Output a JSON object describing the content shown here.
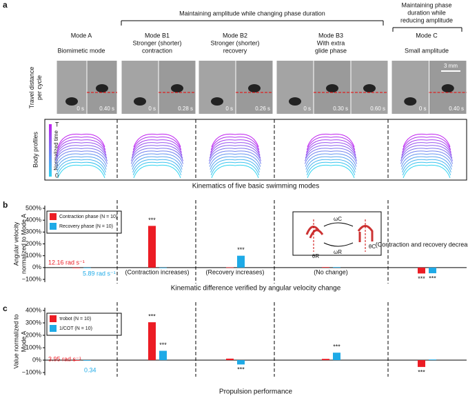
{
  "panel_a": {
    "label": "a",
    "header_left": "Maintaining amplitude while changing phase duration",
    "header_right": [
      "Maintaining phase",
      "duration while",
      "reducing amplitude"
    ],
    "row_labels": [
      [
        "Travel distance",
        "per cycle"
      ],
      [
        "Body profiles"
      ]
    ],
    "colorbar": {
      "top": "T",
      "middle": "Normalized time",
      "bottom": "0"
    },
    "scale_bar": "3 mm",
    "caption": "Kinematics of five basic swimming modes",
    "modes": [
      {
        "name": "Mode A",
        "description": [
          "Biomimetic mode"
        ],
        "times": [
          "0 s",
          "0.40 s"
        ]
      },
      {
        "name": "Mode B1",
        "description": [
          "Stronger (shorter)",
          "contraction"
        ],
        "times": [
          "0 s",
          "0.28 s"
        ]
      },
      {
        "name": "Mode B2",
        "description": [
          "Stronger (shorter)",
          "recovery"
        ],
        "times": [
          "0 s",
          "0.26 s"
        ]
      },
      {
        "name": "Mode B3",
        "description": [
          "With extra",
          "glide phase"
        ],
        "times": [
          "0 s",
          "0.30 s",
          "0.60 s"
        ]
      },
      {
        "name": "Mode C",
        "description": [
          "Small amplitude"
        ],
        "times": [
          "0 s",
          "0.40 s"
        ]
      }
    ]
  },
  "chart_data": [
    {
      "type": "bar",
      "label": "b",
      "y_label": [
        "Angular velocity",
        "normalized to Mode A"
      ],
      "caption": "Kinematic difference verified by angular velocity change",
      "categories": [
        null,
        null,
        null,
        null,
        null
      ],
      "ylim": [
        -100,
        500
      ],
      "yticks": [
        {
          "value": -100,
          "label": "−100%"
        },
        {
          "value": 0,
          "label": "0%"
        },
        {
          "value": 100,
          "label": "100%"
        },
        {
          "value": 200,
          "label": "200%"
        },
        {
          "value": 300,
          "label": "300%"
        },
        {
          "value": 400,
          "label": "400%"
        },
        {
          "value": 500,
          "label": "500%"
        }
      ],
      "series": [
        {
          "name": "Contraction phase (N = 10)",
          "color": "#ec1c24",
          "values": [
            0,
            352,
            2,
            4,
            -50
          ],
          "significance": [
            null,
            "***",
            null,
            null,
            "***"
          ]
        },
        {
          "name": "Recovery phase (N = 10)",
          "color": "#1eaae7",
          "values": [
            0,
            0,
            100,
            4,
            -48
          ],
          "significance": [
            null,
            null,
            "***",
            null,
            "***"
          ]
        }
      ],
      "annotations": [
        "12.16 rad s⁻¹",
        "5.89 rad s⁻¹",
        "(Contraction increases)",
        "(Recovery increases)",
        "(No change)",
        "(Contraction and recovery decrease )"
      ],
      "inset": [
        "ωC",
        "ωR",
        "θR",
        "θC"
      ]
    },
    {
      "type": "bar",
      "label": "c",
      "y_label": [
        "Value normalized to",
        "Mode A"
      ],
      "caption": "Propulsion performance",
      "categories": [
        null,
        null,
        null,
        null,
        null
      ],
      "ylim": [
        -100,
        400
      ],
      "yticks": [
        {
          "value": -100,
          "label": "−100%"
        },
        {
          "value": 0,
          "label": "0%"
        },
        {
          "value": 100,
          "label": "100%"
        },
        {
          "value": 200,
          "label": "200%"
        },
        {
          "value": 300,
          "label": "300%"
        },
        {
          "value": 400,
          "label": "400%"
        }
      ],
      "series": [
        {
          "name": "τrobot (N = 10)",
          "color": "#ec1c24",
          "values": [
            0,
            305,
            12,
            10,
            -55
          ],
          "significance": [
            null,
            "***",
            null,
            null,
            "***"
          ]
        },
        {
          "name": "1/COT (N = 10)",
          "color": "#1eaae7",
          "values": [
            0,
            75,
            -35,
            60,
            5
          ],
          "significance": [
            null,
            "***",
            "***",
            "***",
            null
          ]
        }
      ],
      "annotations": [
        "3.95 rad s⁻¹",
        "0.34"
      ]
    }
  ]
}
